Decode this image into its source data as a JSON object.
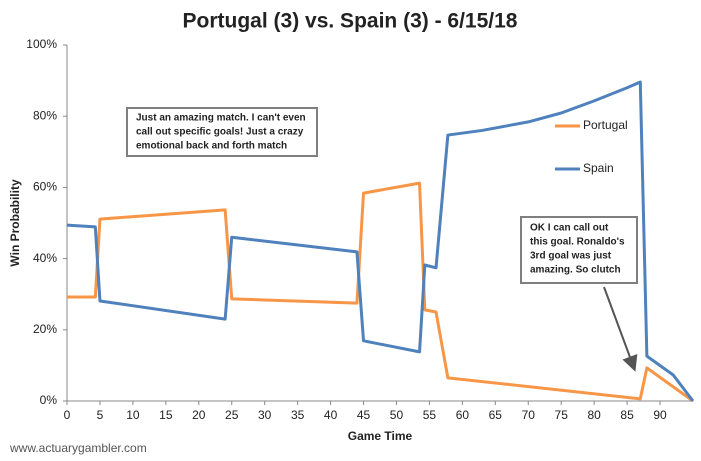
{
  "chart_data": {
    "type": "line",
    "title": "Portugal (3) vs. Spain (3) - 6/15/18",
    "xlabel": "Game Time",
    "ylabel": "Win Probability",
    "source": "www.actuarygambler.com",
    "xlim": [
      0,
      95
    ],
    "xticks": [
      0,
      5,
      10,
      15,
      20,
      25,
      30,
      35,
      40,
      45,
      50,
      55,
      60,
      65,
      70,
      75,
      80,
      85,
      90
    ],
    "ylim": [
      0,
      100
    ],
    "yticks": [
      {
        "value": 0,
        "label": "0%"
      },
      {
        "value": 20,
        "label": "20%"
      },
      {
        "value": 40,
        "label": "40%"
      },
      {
        "value": 60,
        "label": "60%"
      },
      {
        "value": 80,
        "label": "80%"
      },
      {
        "value": 100,
        "label": "100%"
      }
    ],
    "legend": "upper right",
    "series": [
      {
        "name": "Portugal",
        "color": "#f79646",
        "x": [
          0,
          4.3,
          5,
          24,
          25,
          44,
          45,
          53.5,
          54.3,
          56,
          57.8,
          87,
          88,
          95
        ],
        "values": [
          29.2,
          29.2,
          51.1,
          53.7,
          28.7,
          27.5,
          58.4,
          61.2,
          25.6,
          25,
          6.5,
          0.6,
          9.3,
          0
        ]
      },
      {
        "name": "Spain",
        "color": "#4f81bd",
        "x": [
          0,
          4.3,
          5,
          24,
          25,
          44,
          45,
          53.5,
          54.3,
          56,
          57.8,
          63,
          70,
          75,
          80,
          85,
          87,
          88,
          92,
          95
        ],
        "values": [
          49.4,
          48.9,
          28.1,
          23,
          46,
          41.9,
          16.9,
          13.8,
          38.2,
          37.4,
          74.7,
          76,
          78.4,
          80.9,
          84.3,
          88,
          89.6,
          12.6,
          7.3,
          0
        ]
      }
    ],
    "annotations": [
      {
        "lines": [
          "Just an amazing match. I can't even",
          "call out specific goals! Just a crazy",
          "emotional back and forth match"
        ]
      },
      {
        "lines": [
          "OK I can call out",
          "this goal. Ronaldo's",
          "3rd goal was just",
          "amazing. So clutch"
        ]
      }
    ]
  }
}
